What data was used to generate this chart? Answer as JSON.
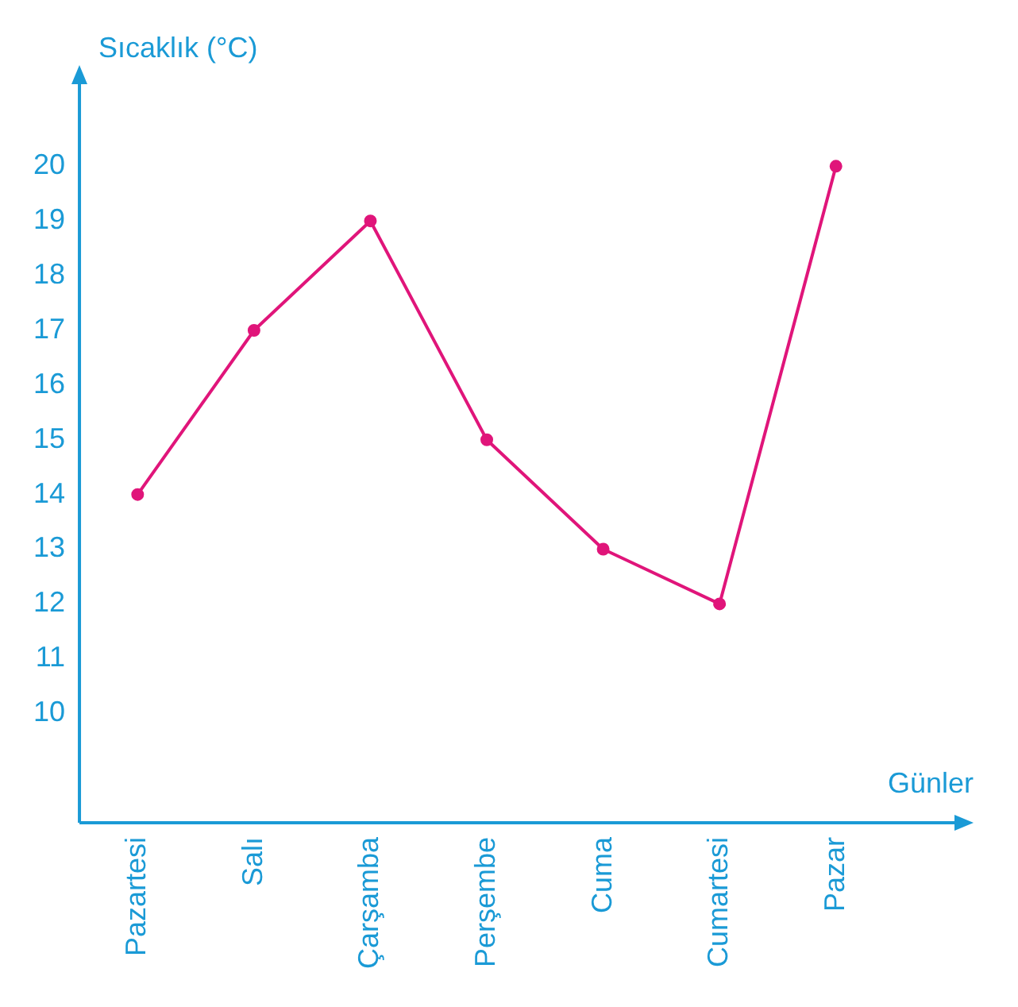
{
  "chart_data": {
    "type": "line",
    "xlabel": "Günler",
    "ylabel": "Sıcaklık (°C)",
    "categories": [
      "Pazartesi",
      "Salı",
      "Çarşamba",
      "Perşembe",
      "Cuma",
      "Cumartesi",
      "Pazar"
    ],
    "series": [
      {
        "color": "#e0157a",
        "values": [
          14,
          17,
          19,
          15,
          13,
          12,
          20
        ]
      }
    ],
    "ylim": [
      8,
      21.5
    ],
    "yticks": [
      10,
      11,
      12,
      13,
      14,
      15,
      16,
      17,
      18,
      19,
      20
    ],
    "grid": false,
    "legend": false,
    "marker": "circle",
    "line_style": "solid"
  }
}
